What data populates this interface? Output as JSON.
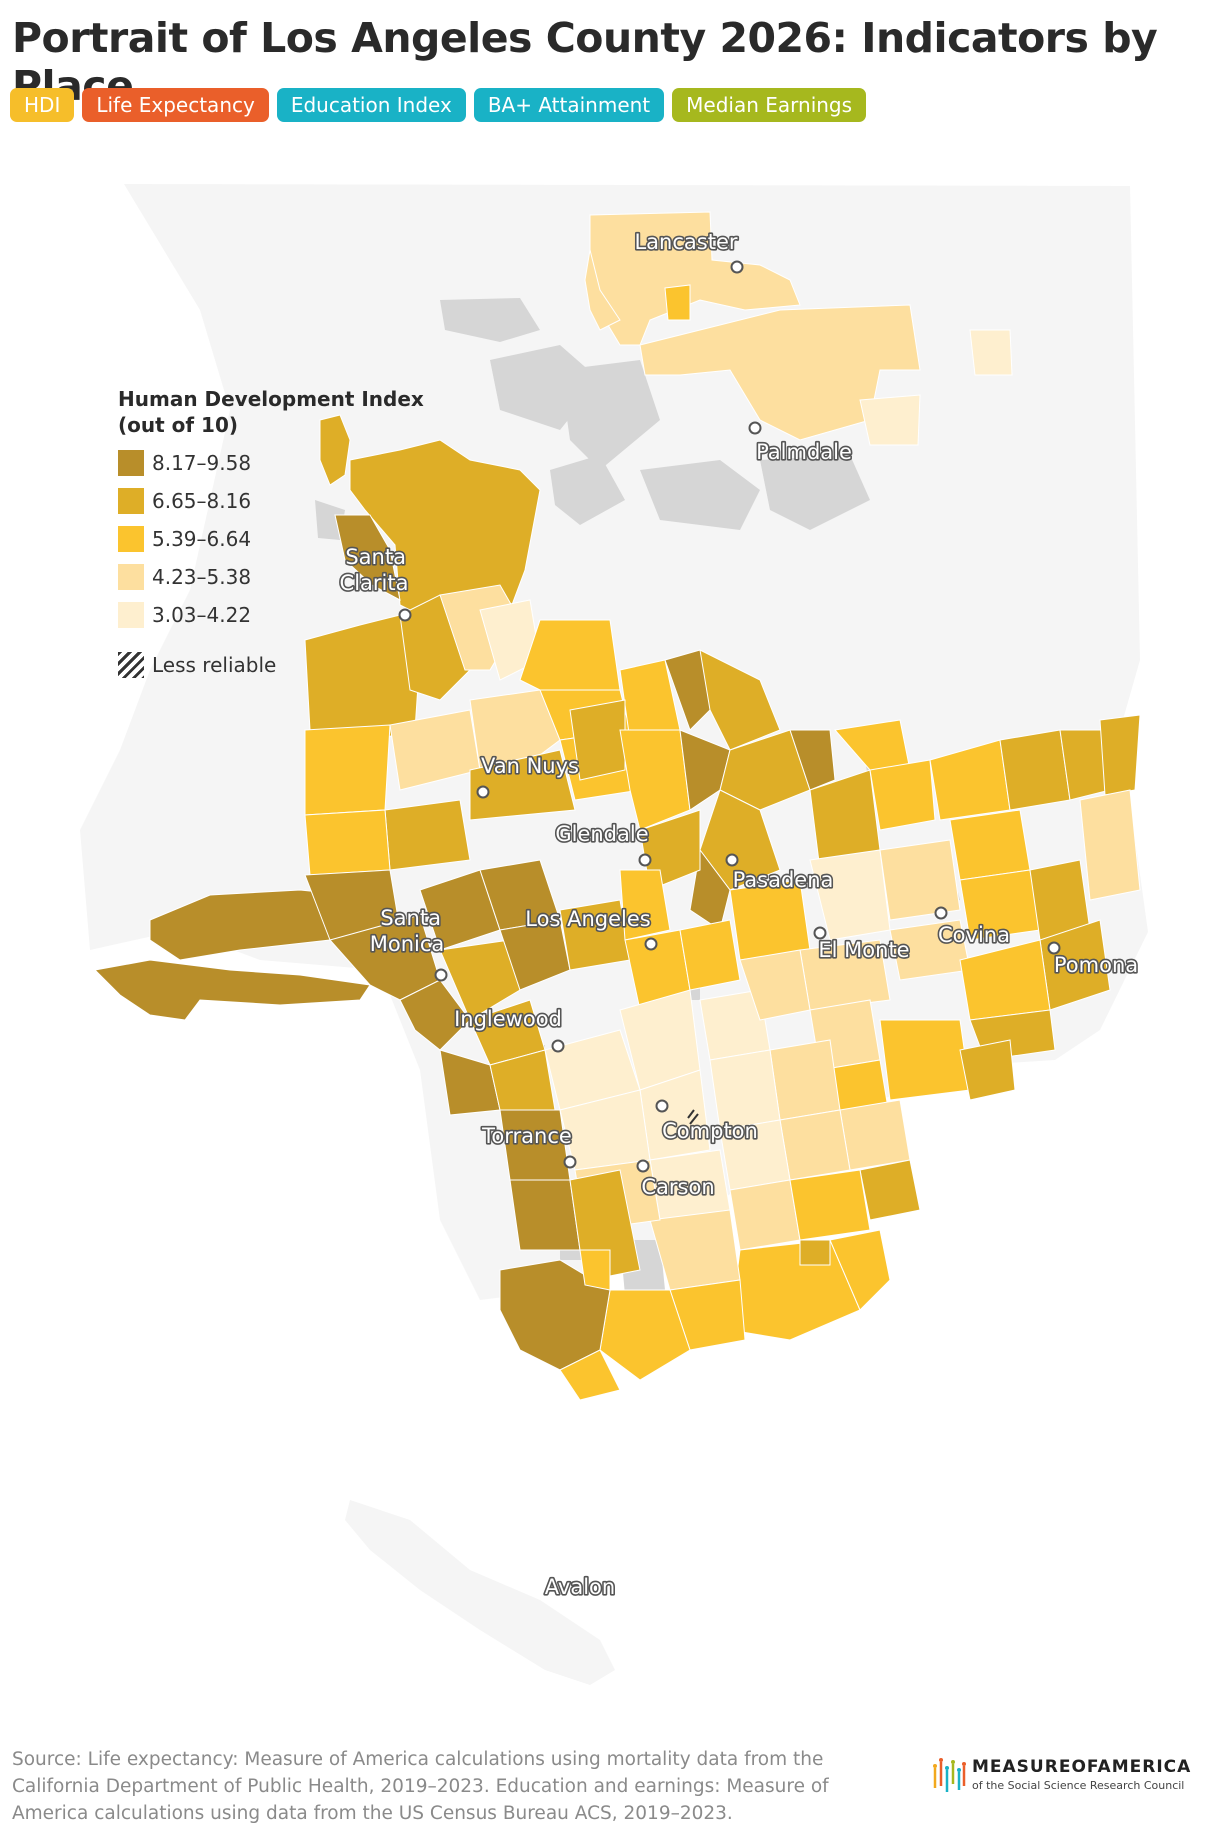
{
  "title": "Portrait of Los Angeles County 2026: Indicators by Place",
  "tabs": [
    {
      "label": "HDI",
      "color": "#f6be2a",
      "active": true
    },
    {
      "label": "Life Expectancy",
      "color": "#ea5f2a",
      "active": false
    },
    {
      "label": "Education Index",
      "color": "#19b2c6",
      "active": false
    },
    {
      "label": "BA+ Attainment",
      "color": "#19b2c6",
      "active": false
    },
    {
      "label": "Median Earnings",
      "color": "#a6b81e",
      "active": false
    }
  ],
  "legend": {
    "title_line1": "Human Development Index",
    "title_line2": "(out of 10)",
    "bins": [
      {
        "label": "8.17–9.58",
        "color": "#b88e2a"
      },
      {
        "label": "6.65–8.16",
        "color": "#deae27"
      },
      {
        "label": "5.39–6.64",
        "color": "#fbc42e"
      },
      {
        "label": "4.23–5.38",
        "color": "#fddf9f"
      },
      {
        "label": "3.03–4.22",
        "color": "#feefcf"
      }
    ],
    "less_reliable": "Less reliable"
  },
  "map_colors": {
    "county_background": "#f5f5f5",
    "no_data": "#d6d6d6"
  },
  "places": [
    {
      "name": "Lancaster"
    },
    {
      "name": "Palmdale"
    },
    {
      "name": "Santa Clarita",
      "lines": [
        "Santa",
        "Clarita"
      ]
    },
    {
      "name": "Van Nuys"
    },
    {
      "name": "Glendale"
    },
    {
      "name": "Pasadena"
    },
    {
      "name": "Santa Monica",
      "lines": [
        "Santa",
        "Monica"
      ]
    },
    {
      "name": "Los Angeles"
    },
    {
      "name": "El Monte"
    },
    {
      "name": "Covina"
    },
    {
      "name": "Pomona"
    },
    {
      "name": "Inglewood"
    },
    {
      "name": "Compton"
    },
    {
      "name": "Torrance"
    },
    {
      "name": "Carson"
    },
    {
      "name": "Avalon"
    }
  ],
  "source": "Source: Life expectancy: Measure of America calculations using mortality data from the California Department of Public Health, 2019–2023. Education and earnings: Measure of America calculations using data from the US Census Bureau ACS, 2019–2023.",
  "logo": {
    "name": "MEASUREOFAMERICA",
    "subtitle": "of the Social Science Research Council"
  }
}
